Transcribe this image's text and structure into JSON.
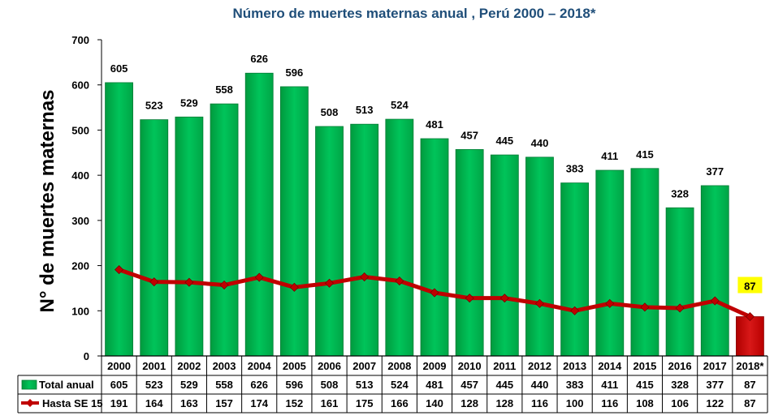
{
  "chart_data": {
    "type": "bar",
    "title": "Número de muertes maternas anual , Perú 2000 – 2018*",
    "ylabel": "N° de muertes  maternas",
    "xlabel": "",
    "ylim": [
      0,
      700
    ],
    "yticks": [
      0,
      100,
      200,
      300,
      400,
      500,
      600,
      700
    ],
    "grid": false,
    "legend": "table-left",
    "categories": [
      "2000",
      "2001",
      "2002",
      "2003",
      "2004",
      "2005",
      "2006",
      "2007",
      "2008",
      "2009",
      "2010",
      "2011",
      "2012",
      "2013",
      "2014",
      "2015",
      "2016",
      "2017",
      "2018*"
    ],
    "series": [
      {
        "name": "Total anual",
        "type": "bar",
        "color": "#00b050",
        "highlight_color": "#c00000",
        "values": [
          605,
          523,
          529,
          558,
          626,
          596,
          508,
          513,
          524,
          481,
          457,
          445,
          440,
          383,
          411,
          415,
          328,
          377,
          87
        ]
      },
      {
        "name": "Hasta SE 15",
        "type": "line",
        "color": "#c00000",
        "values": [
          191,
          164,
          163,
          157,
          174,
          152,
          161,
          175,
          166,
          140,
          128,
          128,
          116,
          100,
          116,
          108,
          106,
          122,
          87
        ]
      }
    ],
    "annotation": {
      "text": "87",
      "category": "2018*",
      "background": "#ffff00"
    }
  }
}
